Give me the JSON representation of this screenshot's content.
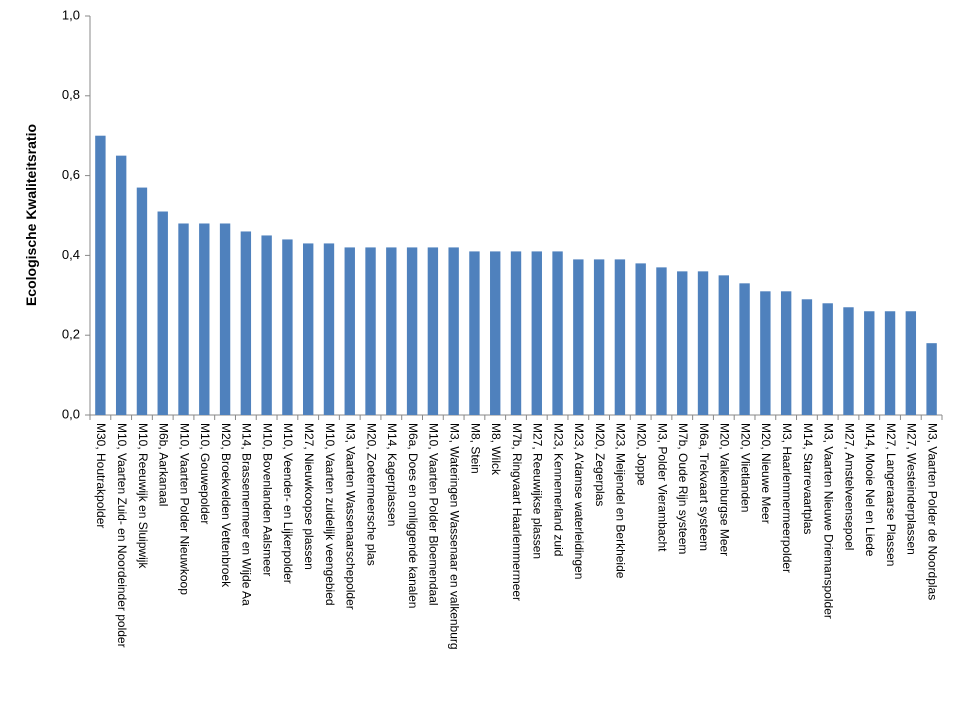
{
  "chart_data": {
    "type": "bar",
    "y_label": "Ecologische Kwaliteitsratio",
    "categories": [
      "M30, Houtrakpolder",
      "M10, Vaarten Zuid- en Noordeinder polder",
      "M10, Reeuwijk en Sluipwijk",
      "M6b, Aarkanaal",
      "M10, Vaarten Polder Nieuwkoop",
      "M10, Gouwepolder",
      "M20, Broekvelden Vettenbroek",
      "M14, Brassemermeer en Wijde Aa",
      "M10, Bovenlanden Aalsmeer",
      "M10, Veender- en Lijkerpolder",
      "M27, Nieuwkoopse plassen",
      "M10, Vaarten zuidelijk veengebied",
      "M3, Vaarten Wassenaarschepolder",
      "M20, Zoetermeersche plas",
      "M14, Kagerplassen",
      "M6a, Does en omliggende kanalen",
      "M10, Vaarten Polder Bloemendaal",
      "M3, Wateringen Wassenaar en valkenburg",
      "M8, Stein",
      "M8, Wilck",
      "M7b, Ringvaart Haarlemmermeer",
      "M27, Reeuwijkse plassen",
      "M23, Kennemerland zuid",
      "M23, A'damse waterleidingen",
      "M20, Zegerplas",
      "M23, Meijendel en Berkheide",
      "M20, Joppe",
      "M3, Polder Vierambacht",
      "M7b, Oude Rijn systeem",
      "M6a, Trekvaart systeem",
      "M20, Valkenburgse Meer",
      "M20, Vlietlanden",
      "M20, Nieuwe Meer",
      "M3, Haarlemmermeerpolder",
      "M14, Starrevaartplas",
      "M3, Vaarten Nieuwe Driemanspolder",
      "M27, Amstelveensepoel",
      "M14, Mooie Nel en Liede",
      "M27, Langeraarse Plassen",
      "M27, Westeinderplassen",
      "M3, Vaarten Polder de Noordplas"
    ],
    "values": [
      0.7,
      0.65,
      0.57,
      0.51,
      0.48,
      0.48,
      0.48,
      0.46,
      0.45,
      0.44,
      0.43,
      0.43,
      0.42,
      0.42,
      0.42,
      0.42,
      0.42,
      0.42,
      0.41,
      0.41,
      0.41,
      0.41,
      0.41,
      0.39,
      0.39,
      0.39,
      0.38,
      0.37,
      0.36,
      0.36,
      0.35,
      0.33,
      0.31,
      0.31,
      0.29,
      0.28,
      0.27,
      0.26,
      0.26,
      0.26,
      0.18
    ],
    "color": "#4f81bd",
    "ylim": [
      0,
      1
    ],
    "yticks": [
      {
        "value": 0,
        "label": "0,0"
      },
      {
        "value": 0.2,
        "label": "0,2"
      },
      {
        "value": 0.4,
        "label": "0,4"
      },
      {
        "value": 0.6,
        "label": "0,6"
      },
      {
        "value": 0.8,
        "label": "0,8"
      },
      {
        "value": 1,
        "label": "1,0"
      }
    ],
    "grid": false
  }
}
